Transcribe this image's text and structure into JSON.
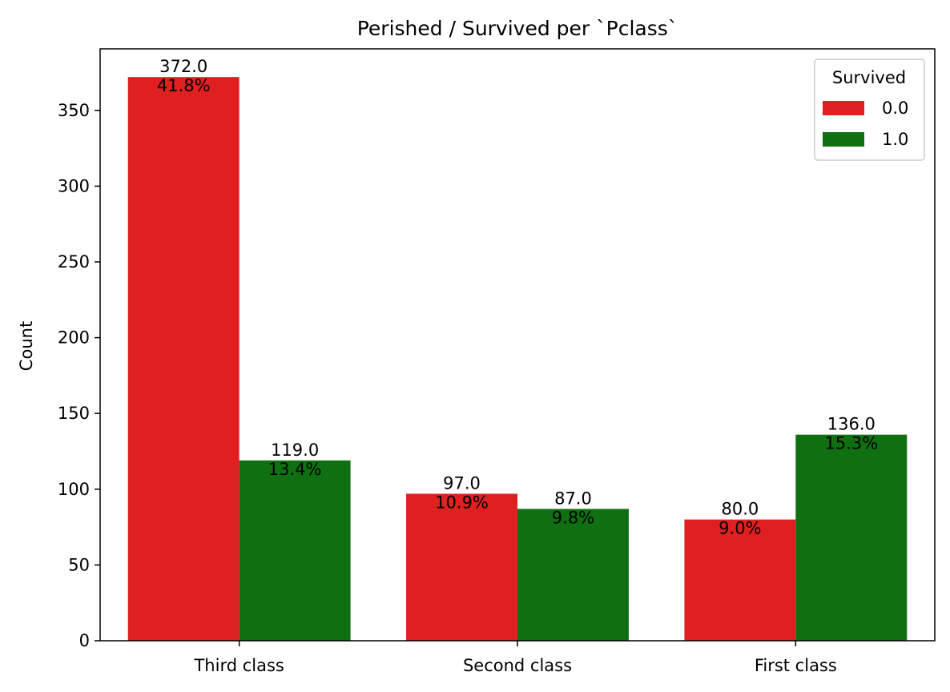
{
  "chart_data": {
    "type": "bar",
    "title": "Perished / Survived per `Pclass`",
    "xlabel": "",
    "ylabel": "Count",
    "categories": [
      "Third class",
      "Second class",
      "First class"
    ],
    "series": [
      {
        "name": "0.0",
        "color": "#e02020",
        "values": [
          372.0,
          97.0,
          80.0
        ],
        "value_labels": [
          "372.0",
          "97.0",
          "80.0"
        ],
        "percent_labels": [
          "41.8%",
          "10.9%",
          "9.0%"
        ]
      },
      {
        "name": "1.0",
        "color": "#0f7011",
        "values": [
          119.0,
          87.0,
          136.0
        ],
        "value_labels": [
          "119.0",
          "87.0",
          "136.0"
        ],
        "percent_labels": [
          "13.4%",
          "9.8%",
          "15.3%"
        ]
      }
    ],
    "ylim": [
      0,
      390.6
    ],
    "yticks": [
      0,
      50,
      100,
      150,
      200,
      250,
      300,
      350
    ],
    "grid": false,
    "legend": {
      "title": "Survived",
      "position": "top-right"
    }
  }
}
